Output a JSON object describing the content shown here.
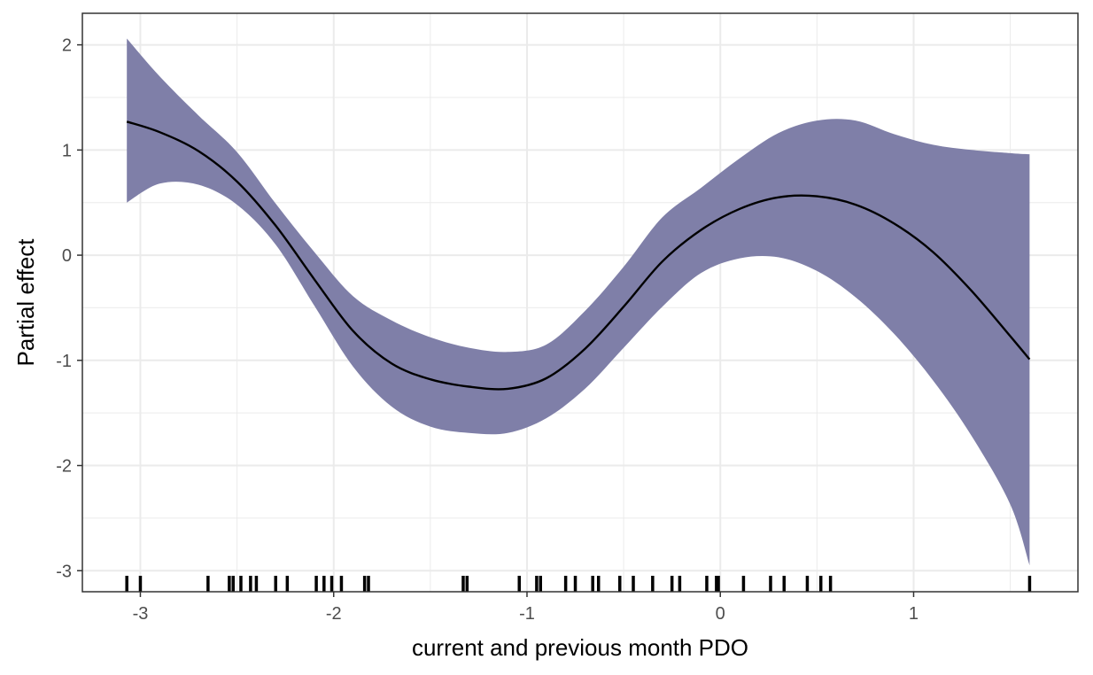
{
  "chart_data": {
    "type": "area",
    "xlabel": "current and previous month PDO",
    "ylabel": "Partial effect",
    "xlim": [
      -3.3,
      1.85
    ],
    "ylim": [
      -3.2,
      2.3
    ],
    "xticks": [
      -3,
      -2,
      -1,
      0,
      1
    ],
    "yticks": [
      -3,
      -2,
      -1,
      0,
      1,
      2
    ],
    "grid": true,
    "colors": {
      "ribbon": "#7f7fa8",
      "line": "#000000",
      "grid": "#ebebeb",
      "border": "#333333",
      "rug": "#000000"
    },
    "series": [
      {
        "x": [
          -3.07,
          -2.9,
          -2.7,
          -2.5,
          -2.3,
          -2.1,
          -1.9,
          -1.7,
          -1.5,
          -1.3,
          -1.1,
          -0.9,
          -0.7,
          -0.5,
          -0.3,
          -0.1,
          0.1,
          0.3,
          0.5,
          0.7,
          0.9,
          1.1,
          1.3,
          1.5,
          1.6
        ],
        "y": [
          1.27,
          1.17,
          0.99,
          0.7,
          0.28,
          -0.23,
          -0.72,
          -1.03,
          -1.18,
          -1.25,
          -1.27,
          -1.17,
          -0.89,
          -0.49,
          -0.06,
          0.24,
          0.44,
          0.55,
          0.56,
          0.48,
          0.3,
          0.03,
          -0.34,
          -0.77,
          -0.99
        ],
        "lower": [
          0.5,
          0.68,
          0.67,
          0.48,
          0.1,
          -0.48,
          -1.06,
          -1.44,
          -1.63,
          -1.69,
          -1.69,
          -1.55,
          -1.27,
          -0.88,
          -0.49,
          -0.17,
          -0.03,
          -0.02,
          -0.15,
          -0.4,
          -0.75,
          -1.19,
          -1.72,
          -2.37,
          -2.95
        ],
        "upper": [
          2.06,
          1.7,
          1.33,
          0.98,
          0.49,
          0.03,
          -0.39,
          -0.62,
          -0.78,
          -0.88,
          -0.92,
          -0.85,
          -0.53,
          -0.11,
          0.36,
          0.64,
          0.92,
          1.16,
          1.28,
          1.28,
          1.15,
          1.05,
          1.0,
          0.97,
          0.96
        ]
      }
    ],
    "rug": [
      -3.07,
      -3.0,
      -2.65,
      -2.54,
      -2.52,
      -2.48,
      -2.43,
      -2.4,
      -2.3,
      -2.24,
      -2.09,
      -2.05,
      -2.01,
      -1.96,
      -1.84,
      -1.82,
      -1.33,
      -1.31,
      -1.04,
      -0.95,
      -0.93,
      -0.8,
      -0.75,
      -0.66,
      -0.63,
      -0.52,
      -0.45,
      -0.35,
      -0.25,
      -0.21,
      -0.07,
      -0.02,
      -0.01,
      0.12,
      0.26,
      0.33,
      0.45,
      0.52,
      0.57,
      1.6
    ]
  }
}
